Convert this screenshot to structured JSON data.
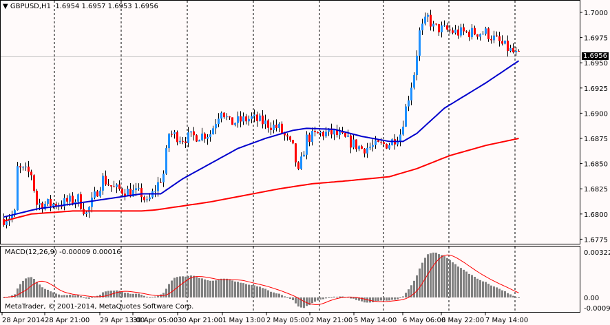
{
  "header": {
    "symbol": "GBPUSD,H1",
    "ohlc": "1.6954 1.6957 1.6953 1.6956"
  },
  "current_price": "1.6956",
  "price_axis": [
    "1.7000",
    "1.6975",
    "1.6950",
    "1.6925",
    "1.6900",
    "1.6875",
    "1.6850",
    "1.6825",
    "1.6800",
    "1.6775"
  ],
  "macd": {
    "label": "MACD(12,26,9) -0.00009 0.00016",
    "axis": [
      "0.00322",
      "0.00",
      "-0.0009"
    ]
  },
  "copyright": "MetaTrader, © 2001-2014, MetaQuotes Software Corp.",
  "time_axis": [
    "28 Apr 2014",
    "28 Apr 21:00",
    "29 Apr 13:00",
    "30 Apr 05:00",
    "30 Apr 21:00",
    "1 May 13:00",
    "2 May 05:00",
    "2 May 21:00",
    "5 May 14:00",
    "6 May 06:00",
    "6 May 22:00",
    "7 May 14:00"
  ],
  "colors": {
    "bull": "#1e90ff",
    "bear": "#ff0000",
    "ma_fast": "#0000cd",
    "ma_slow": "#ff0000",
    "hist": "#808080"
  },
  "chart_data": {
    "type": "candlestick",
    "price_keypoints": [
      [
        0,
        1.6795
      ],
      [
        4,
        1.68
      ],
      [
        5,
        1.6845
      ],
      [
        10,
        1.684
      ],
      [
        12,
        1.681
      ],
      [
        20,
        1.681
      ],
      [
        27,
        1.6815
      ],
      [
        30,
        1.68
      ],
      [
        36,
        1.6835
      ],
      [
        40,
        1.6825
      ],
      [
        50,
        1.682
      ],
      [
        52,
        1.681
      ],
      [
        58,
        1.684
      ],
      [
        60,
        1.688
      ],
      [
        65,
        1.6875
      ],
      [
        75,
        1.688
      ],
      [
        79,
        1.6905
      ],
      [
        82,
        1.689
      ],
      [
        90,
        1.6895
      ],
      [
        100,
        1.6885
      ],
      [
        105,
        1.6865
      ],
      [
        107,
        1.684
      ],
      [
        110,
        1.6875
      ],
      [
        115,
        1.688
      ],
      [
        120,
        1.688
      ],
      [
        130,
        1.6865
      ],
      [
        140,
        1.687
      ],
      [
        144,
        1.688
      ],
      [
        146,
        1.6905
      ],
      [
        149,
        1.694
      ],
      [
        151,
        1.698
      ],
      [
        154,
        1.6995
      ],
      [
        156,
        1.6985
      ],
      [
        165,
        1.698
      ],
      [
        175,
        1.698
      ],
      [
        185,
        1.696
      ],
      [
        187,
        1.6956
      ]
    ],
    "ma_fast": [
      [
        0,
        1.6797
      ],
      [
        12,
        1.6805
      ],
      [
        25,
        1.681
      ],
      [
        50,
        1.682
      ],
      [
        57,
        1.682
      ],
      [
        65,
        1.6835
      ],
      [
        75,
        1.685
      ],
      [
        85,
        1.6865
      ],
      [
        95,
        1.6875
      ],
      [
        105,
        1.6883
      ],
      [
        110,
        1.6885
      ],
      [
        120,
        1.6884
      ],
      [
        130,
        1.6877
      ],
      [
        140,
        1.6872
      ],
      [
        145,
        1.6872
      ],
      [
        150,
        1.688
      ],
      [
        160,
        1.6905
      ],
      [
        175,
        1.693
      ],
      [
        187,
        1.6952
      ]
    ],
    "ma_slow": [
      [
        0,
        1.6793
      ],
      [
        10,
        1.68
      ],
      [
        25,
        1.6803
      ],
      [
        50,
        1.6803
      ],
      [
        55,
        1.6804
      ],
      [
        75,
        1.6812
      ],
      [
        100,
        1.6825
      ],
      [
        112,
        1.683
      ],
      [
        125,
        1.6833
      ],
      [
        140,
        1.6837
      ],
      [
        150,
        1.6845
      ],
      [
        162,
        1.6858
      ],
      [
        175,
        1.6868
      ],
      [
        187,
        1.6875
      ]
    ],
    "ylim": [
      1.6775,
      1.7
    ]
  }
}
